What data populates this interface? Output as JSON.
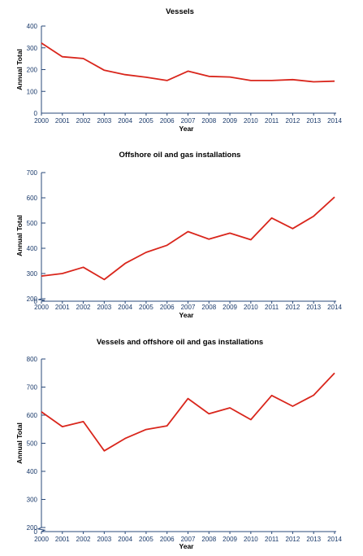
{
  "chart_data": [
    {
      "type": "line",
      "title": "Vessels",
      "xlabel": "Year",
      "ylabel": "Annual Total",
      "x": [
        2000,
        2001,
        2002,
        2003,
        2004,
        2005,
        2006,
        2007,
        2008,
        2009,
        2010,
        2011,
        2012,
        2013,
        2014
      ],
      "series": [
        {
          "values": [
            322,
            259,
            251,
            197,
            177,
            165,
            150,
            193,
            169,
            166,
            150,
            150,
            154,
            144,
            147
          ],
          "color": "#d9261c"
        }
      ],
      "ylim": [
        0,
        400
      ],
      "yticks": [
        0,
        100,
        200,
        300,
        400
      ],
      "axis_break": false,
      "grid": false
    },
    {
      "type": "line",
      "title": "Offshore oil and gas installations",
      "xlabel": "Year",
      "ylabel": "Annual Total",
      "x": [
        2000,
        2001,
        2002,
        2003,
        2004,
        2005,
        2006,
        2007,
        2008,
        2009,
        2010,
        2011,
        2012,
        2013,
        2014
      ],
      "series": [
        {
          "values": [
            290,
            300,
            325,
            276,
            340,
            384,
            412,
            466,
            436,
            460,
            434,
            520,
            478,
            527,
            603
          ],
          "color": "#d9261c"
        }
      ],
      "ylim": [
        200,
        700
      ],
      "yticks": [
        0,
        200,
        300,
        400,
        500,
        600,
        700
      ],
      "axis_break": true,
      "grid": false
    },
    {
      "type": "line",
      "title": "Vessels and offshore oil and gas installations",
      "xlabel": "Year",
      "ylabel": "Annual Total",
      "x": [
        2000,
        2001,
        2002,
        2003,
        2004,
        2005,
        2006,
        2007,
        2008,
        2009,
        2010,
        2011,
        2012,
        2013,
        2014
      ],
      "series": [
        {
          "values": [
            612,
            559,
            577,
            473,
            517,
            549,
            562,
            659,
            605,
            626,
            584,
            670,
            632,
            671,
            750
          ],
          "color": "#d9261c"
        }
      ],
      "ylim": [
        200,
        800
      ],
      "yticks": [
        0,
        200,
        300,
        400,
        500,
        600,
        700,
        800
      ],
      "axis_break": true,
      "grid": false
    }
  ]
}
